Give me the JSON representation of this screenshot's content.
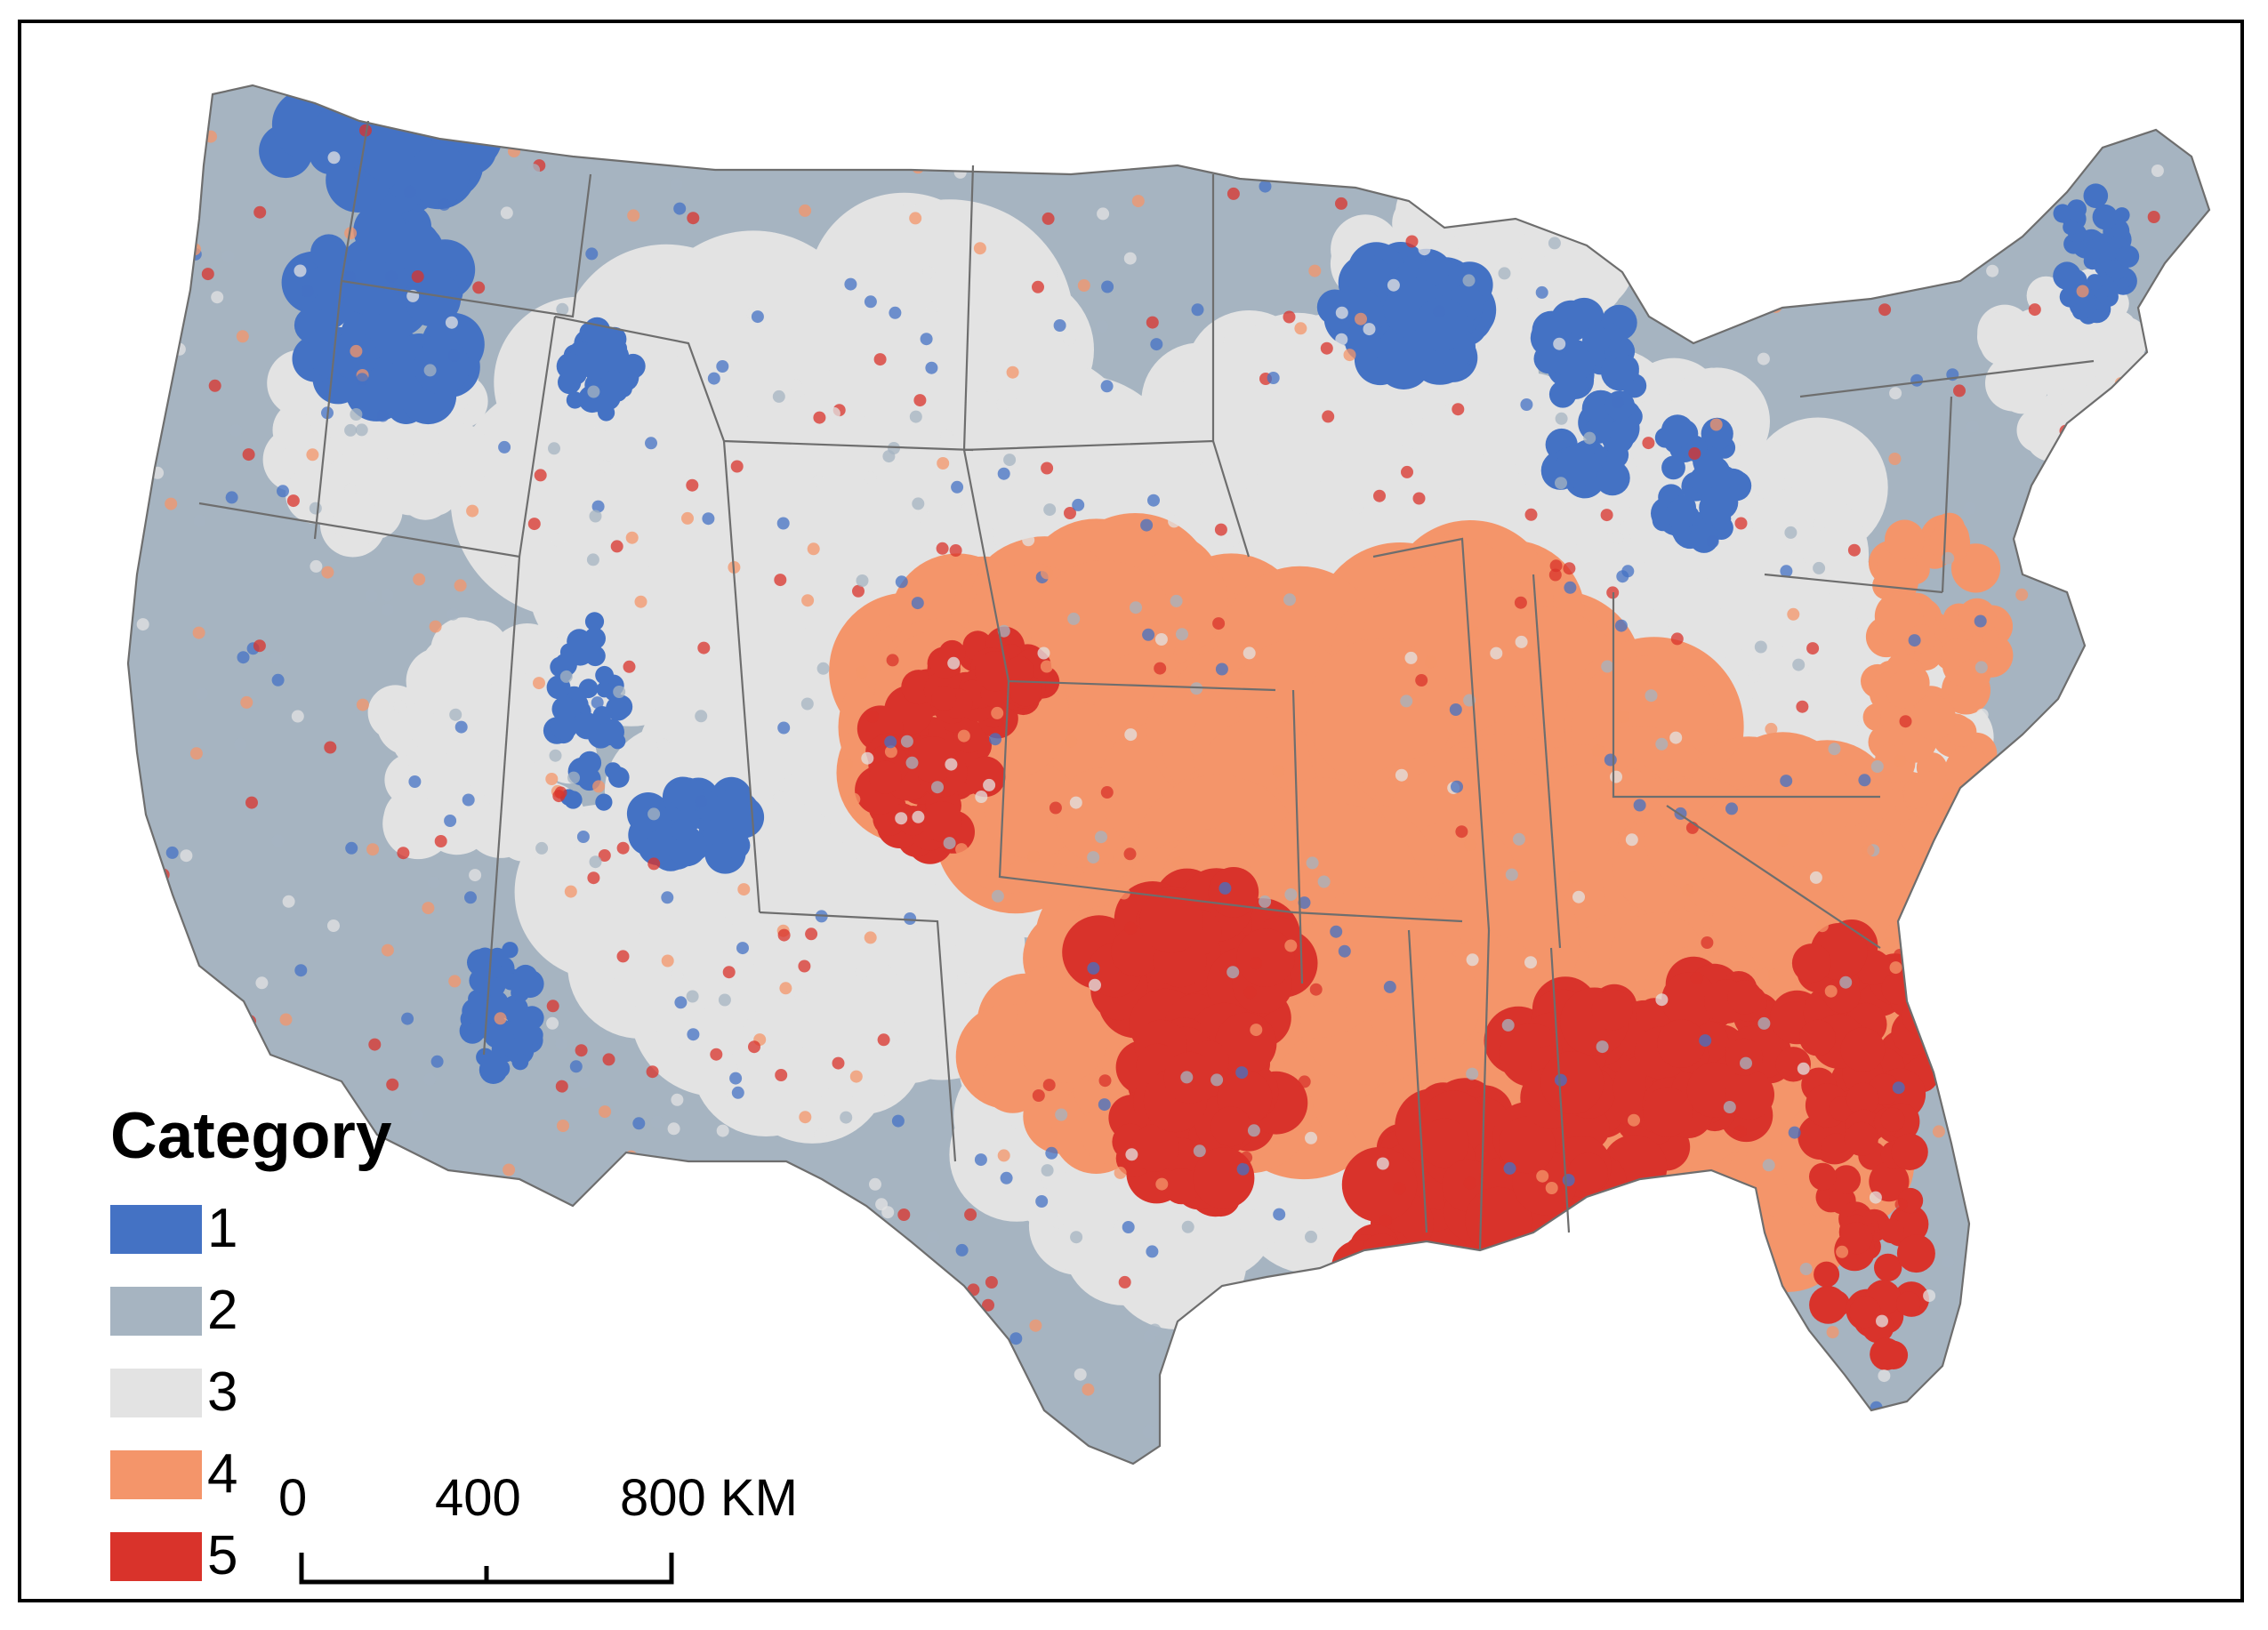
{
  "legend": {
    "title": "Category",
    "items": [
      {
        "label": "1",
        "color": "#4472c4"
      },
      {
        "label": "2",
        "color": "#a6b4c1"
      },
      {
        "label": "3",
        "color": "#e3e3e3"
      },
      {
        "label": "4",
        "color": "#f4956a"
      },
      {
        "label": "5",
        "color": "#d9332b"
      }
    ]
  },
  "scale_bar": {
    "labels": [
      "0",
      "400",
      "800 KM"
    ]
  },
  "map": {
    "region": "contiguous-united-states",
    "style": "hexbin-choropleth",
    "boundary_color": "#6e6e6e",
    "category_regions": {
      "1": [
        "pacific northwest",
        "upper great lakes shoreline",
        "northern maine",
        "utah mountains"
      ],
      "2": [
        "western states",
        "northern plains",
        "new england"
      ],
      "3": [
        "great plains",
        "midwest",
        "ohio valley"
      ],
      "4": [
        "central plains",
        "mid-south",
        "mid-atlantic"
      ],
      "5": [
        "oklahoma-texas",
        "lower mississippi",
        "alabama-georgia",
        "south carolina",
        "florida"
      ]
    }
  }
}
